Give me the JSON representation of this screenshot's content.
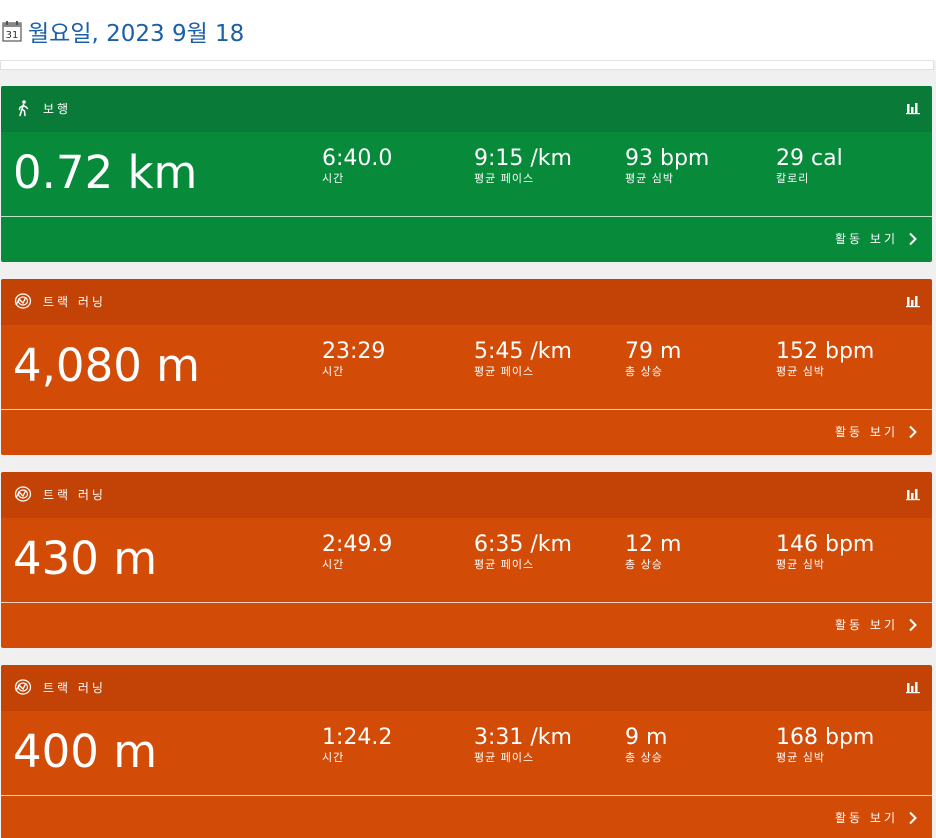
{
  "header": {
    "date": "월요일, 2023 9월 18",
    "calendar_day": "31"
  },
  "activities": [
    {
      "type": "보행",
      "kind": "walk",
      "distance": "0.72 km",
      "stats": [
        {
          "value": "6:40.0",
          "label": "시간"
        },
        {
          "value": "9:15 /km",
          "label": "평균 페이스"
        },
        {
          "value": "93 bpm",
          "label": "평균 심박"
        },
        {
          "value": "29 cal",
          "label": "칼로리"
        }
      ],
      "view_label": "활동 보기"
    },
    {
      "type": "트랙 러닝",
      "kind": "run",
      "distance": "4,080 m",
      "stats": [
        {
          "value": "23:29",
          "label": "시간"
        },
        {
          "value": "5:45 /km",
          "label": "평균 페이스"
        },
        {
          "value": "79 m",
          "label": "총 상승"
        },
        {
          "value": "152 bpm",
          "label": "평균 심박"
        }
      ],
      "view_label": "활동 보기"
    },
    {
      "type": "트랙 러닝",
      "kind": "run",
      "distance": "430 m",
      "stats": [
        {
          "value": "2:49.9",
          "label": "시간"
        },
        {
          "value": "6:35 /km",
          "label": "평균 페이스"
        },
        {
          "value": "12 m",
          "label": "총 상승"
        },
        {
          "value": "146 bpm",
          "label": "평균 심박"
        }
      ],
      "view_label": "활동 보기"
    },
    {
      "type": "트랙 러닝",
      "kind": "run",
      "distance": "400 m",
      "stats": [
        {
          "value": "1:24.2",
          "label": "시간"
        },
        {
          "value": "3:31 /km",
          "label": "평균 페이스"
        },
        {
          "value": "9 m",
          "label": "총 상승"
        },
        {
          "value": "168 bpm",
          "label": "평균 심박"
        }
      ],
      "view_label": "활동 보기"
    }
  ],
  "colors": {
    "date_text": "#1b5fa6",
    "walk_header": "#0a7a38",
    "walk_body": "#078a3a",
    "run_header": "#c34205",
    "run_body": "#d24c08"
  },
  "icons": {
    "walk": "walking-person-icon",
    "run": "running-shoe-icon",
    "chart": "bar-chart-icon",
    "view": "chevron-right-icon",
    "date": "calendar-icon"
  }
}
